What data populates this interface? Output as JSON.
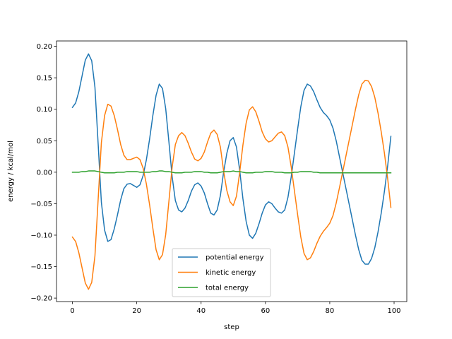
{
  "chart_data": {
    "type": "line",
    "xlabel": "step",
    "ylabel": "energy / kcal/mol",
    "xlim": [
      -4.95,
      103.95
    ],
    "ylim": [
      -0.2055,
      0.2085
    ],
    "xticks": [
      0,
      20,
      40,
      60,
      80,
      100
    ],
    "yticks": [
      -0.2,
      -0.15,
      -0.1,
      -0.05,
      0.0,
      0.05,
      0.1,
      0.15,
      0.2
    ],
    "xtick_labels": [
      "0",
      "20",
      "40",
      "60",
      "80",
      "100"
    ],
    "ytick_labels": [
      "−0.20",
      "−0.15",
      "−0.10",
      "−0.05",
      "0.00",
      "0.05",
      "0.10",
      "0.15",
      "0.20"
    ],
    "grid": false,
    "legend_position": "lower center",
    "x": [
      0,
      1,
      2,
      3,
      4,
      5,
      6,
      7,
      8,
      9,
      10,
      11,
      12,
      13,
      14,
      15,
      16,
      17,
      18,
      19,
      20,
      21,
      22,
      23,
      24,
      25,
      26,
      27,
      28,
      29,
      30,
      31,
      32,
      33,
      34,
      35,
      36,
      37,
      38,
      39,
      40,
      41,
      42,
      43,
      44,
      45,
      46,
      47,
      48,
      49,
      50,
      51,
      52,
      53,
      54,
      55,
      56,
      57,
      58,
      59,
      60,
      61,
      62,
      63,
      64,
      65,
      66,
      67,
      68,
      69,
      70,
      71,
      72,
      73,
      74,
      75,
      76,
      77,
      78,
      79,
      80,
      81,
      82,
      83,
      84,
      85,
      86,
      87,
      88,
      89,
      90,
      91,
      92,
      93,
      94,
      95,
      96,
      97,
      98,
      99
    ],
    "series": [
      {
        "name": "potential energy",
        "color": "#1f77b4",
        "values": [
          0.103,
          0.11,
          0.128,
          0.153,
          0.178,
          0.188,
          0.177,
          0.135,
          0.045,
          -0.048,
          -0.092,
          -0.11,
          -0.107,
          -0.09,
          -0.068,
          -0.044,
          -0.026,
          -0.019,
          -0.018,
          -0.021,
          -0.024,
          -0.02,
          -0.005,
          0.02,
          0.053,
          0.09,
          0.122,
          0.14,
          0.133,
          0.101,
          0.048,
          -0.007,
          -0.045,
          -0.06,
          -0.063,
          -0.057,
          -0.045,
          -0.03,
          -0.02,
          -0.017,
          -0.022,
          -0.033,
          -0.05,
          -0.065,
          -0.068,
          -0.06,
          -0.037,
          0.0,
          0.03,
          0.05,
          0.055,
          0.04,
          0.003,
          -0.042,
          -0.078,
          -0.1,
          -0.105,
          -0.097,
          -0.082,
          -0.065,
          -0.052,
          -0.047,
          -0.05,
          -0.057,
          -0.063,
          -0.065,
          -0.06,
          -0.04,
          -0.008,
          0.03,
          0.068,
          0.104,
          0.13,
          0.14,
          0.137,
          0.128,
          0.115,
          0.103,
          0.095,
          0.09,
          0.083,
          0.07,
          0.05,
          0.025,
          0.0,
          -0.025,
          -0.05,
          -0.075,
          -0.1,
          -0.123,
          -0.14,
          -0.146,
          -0.146,
          -0.137,
          -0.12,
          -0.095,
          -0.065,
          -0.03,
          0.01,
          0.057
        ]
      },
      {
        "name": "kinetic energy",
        "color": "#ff7f0e",
        "values": [
          -0.103,
          -0.11,
          -0.128,
          -0.152,
          -0.176,
          -0.186,
          -0.175,
          -0.133,
          -0.043,
          0.047,
          0.09,
          0.108,
          0.105,
          0.09,
          0.068,
          0.044,
          0.027,
          0.02,
          0.02,
          0.022,
          0.024,
          0.02,
          0.006,
          -0.019,
          -0.052,
          -0.089,
          -0.123,
          -0.139,
          -0.131,
          -0.099,
          -0.046,
          0.008,
          0.044,
          0.058,
          0.063,
          0.058,
          0.046,
          0.032,
          0.021,
          0.018,
          0.022,
          0.032,
          0.048,
          0.062,
          0.067,
          0.06,
          0.04,
          0.002,
          -0.029,
          -0.047,
          -0.053,
          -0.038,
          0.0,
          0.043,
          0.078,
          0.099,
          0.104,
          0.096,
          0.081,
          0.064,
          0.053,
          0.048,
          0.05,
          0.056,
          0.062,
          0.064,
          0.058,
          0.04,
          0.009,
          -0.029,
          -0.067,
          -0.103,
          -0.129,
          -0.139,
          -0.136,
          -0.126,
          -0.113,
          -0.102,
          -0.094,
          -0.088,
          -0.081,
          -0.069,
          -0.049,
          -0.025,
          0.0,
          0.025,
          0.05,
          0.075,
          0.1,
          0.123,
          0.14,
          0.146,
          0.145,
          0.136,
          0.119,
          0.094,
          0.064,
          0.03,
          -0.01,
          -0.056
        ]
      },
      {
        "name": "total energy",
        "color": "#2ca02c",
        "values": [
          0.0,
          0.0,
          0.0,
          0.001,
          0.001,
          0.002,
          0.002,
          0.002,
          0.001,
          0.0,
          -0.001,
          -0.001,
          -0.001,
          -0.001,
          0.0,
          0.0,
          0.0,
          0.001,
          0.001,
          0.001,
          0.001,
          0.0,
          0.0,
          0.0,
          0.0,
          0.001,
          0.001,
          0.002,
          0.002,
          0.001,
          0.001,
          0.0,
          -0.001,
          -0.001,
          -0.001,
          0.0,
          0.0,
          0.0,
          0.001,
          0.001,
          0.001,
          0.0,
          0.0,
          -0.001,
          -0.001,
          -0.001,
          0.0,
          0.001,
          0.001,
          0.001,
          0.002,
          0.001,
          0.001,
          0.0,
          -0.001,
          -0.001,
          -0.001,
          0.0,
          0.0,
          0.0,
          0.001,
          0.001,
          0.001,
          0.0,
          0.0,
          0.0,
          -0.001,
          -0.001,
          -0.001,
          0.0,
          0.0,
          0.001,
          0.001,
          0.001,
          0.001,
          0.0,
          0.0,
          -0.001,
          -0.001,
          -0.001,
          -0.001,
          -0.001,
          -0.001,
          -0.001,
          -0.001,
          -0.001,
          -0.001,
          -0.001,
          -0.001,
          -0.001,
          -0.001,
          -0.001,
          -0.001,
          -0.001,
          -0.001,
          -0.001,
          -0.001,
          -0.001,
          -0.001,
          -0.001
        ]
      }
    ]
  }
}
